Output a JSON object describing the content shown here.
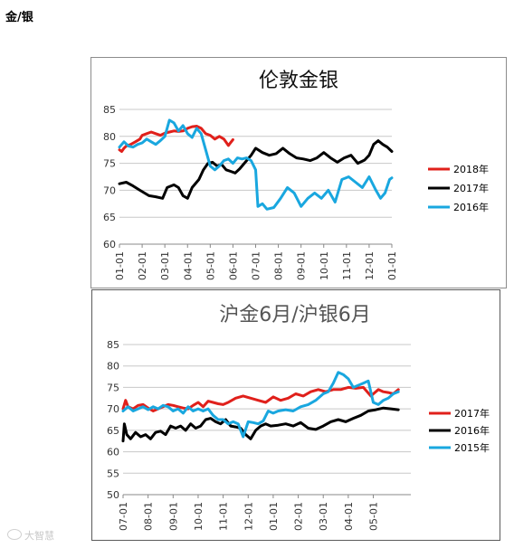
{
  "heading": "金/银",
  "watermark": "大智慧",
  "chart_data": [
    {
      "type": "line",
      "title": "伦敦金银",
      "xlabel": "",
      "ylabel": "",
      "ylim": [
        60,
        85
      ],
      "yticks": [
        "60",
        "65",
        "70",
        "75",
        "80",
        "85"
      ],
      "categories": [
        "01-01",
        "02-01",
        "03-01",
        "04-01",
        "05-01",
        "06-01",
        "07-01",
        "08-01",
        "09-01",
        "10-01",
        "11-01",
        "12-01",
        "01-01"
      ],
      "legend_position": "right",
      "grid": true,
      "series": [
        {
          "name": "2018年",
          "color": "#e0201b",
          "x": [
            0,
            0.1,
            0.2,
            0.3,
            0.5,
            0.7,
            0.9,
            1.0,
            1.2,
            1.4,
            1.6,
            1.8,
            2.0,
            2.2,
            2.4,
            2.6,
            2.8,
            3.0,
            3.2,
            3.4,
            3.6,
            3.8,
            4.0,
            4.2,
            4.4,
            4.6,
            4.8,
            5.0
          ],
          "y": [
            77.5,
            77.2,
            77.8,
            78.2,
            78.5,
            79.0,
            79.5,
            80.2,
            80.5,
            80.8,
            80.5,
            80.2,
            80.6,
            80.8,
            81.0,
            80.9,
            81.0,
            81.5,
            81.8,
            81.9,
            81.5,
            80.5,
            80.2,
            79.5,
            80.0,
            79.5,
            78.3,
            79.4
          ]
        },
        {
          "name": "2017年",
          "color": "#000000",
          "x": [
            0,
            0.3,
            0.6,
            0.9,
            1.1,
            1.3,
            1.6,
            1.9,
            2.1,
            2.4,
            2.6,
            2.8,
            3.0,
            3.2,
            3.5,
            3.7,
            3.9,
            4.1,
            4.3,
            4.5,
            4.7,
            4.9,
            5.1,
            5.3,
            5.6,
            5.8,
            6.0,
            6.3,
            6.6,
            6.9,
            7.2,
            7.5,
            7.8,
            8.1,
            8.4,
            8.7,
            9.0,
            9.3,
            9.6,
            9.9,
            10.2,
            10.5,
            10.8,
            11.0,
            11.2,
            11.4,
            11.6,
            11.8,
            12.0
          ],
          "y": [
            71.2,
            71.5,
            70.8,
            70.0,
            69.5,
            69.0,
            68.8,
            68.5,
            70.5,
            71.0,
            70.5,
            69.0,
            68.5,
            70.5,
            72.0,
            73.8,
            75.0,
            75.2,
            74.5,
            74.8,
            73.8,
            73.5,
            73.2,
            74.0,
            75.5,
            76.5,
            77.8,
            77.0,
            76.5,
            76.8,
            77.8,
            76.8,
            76.0,
            75.8,
            75.5,
            76.0,
            77.0,
            76.0,
            75.2,
            76.0,
            76.5,
            75.0,
            75.6,
            76.5,
            78.5,
            79.2,
            78.5,
            78.0,
            77.2
          ]
        },
        {
          "name": "2016年",
          "color": "#19a7df",
          "x": [
            0,
            0.2,
            0.4,
            0.6,
            0.8,
            1.0,
            1.2,
            1.4,
            1.6,
            1.8,
            2.0,
            2.2,
            2.4,
            2.6,
            2.8,
            3.0,
            3.2,
            3.4,
            3.6,
            3.8,
            4.0,
            4.2,
            4.4,
            4.6,
            4.8,
            5.0,
            5.2,
            5.4,
            5.6,
            5.8,
            6.0,
            6.1,
            6.3,
            6.5,
            6.8,
            7.1,
            7.4,
            7.7,
            8.0,
            8.3,
            8.6,
            8.9,
            9.2,
            9.5,
            9.8,
            10.1,
            10.4,
            10.7,
            11.0,
            11.3,
            11.5,
            11.7,
            11.9,
            12.0
          ],
          "y": [
            78.0,
            79.0,
            78.2,
            78.0,
            78.5,
            78.8,
            79.5,
            79.0,
            78.5,
            79.2,
            80.0,
            83.0,
            82.5,
            81.0,
            82.0,
            80.5,
            79.8,
            81.5,
            80.5,
            77.5,
            74.5,
            73.8,
            74.5,
            75.5,
            75.8,
            75.0,
            76.0,
            75.8,
            76.0,
            75.5,
            73.8,
            67.0,
            67.5,
            66.5,
            66.8,
            68.5,
            70.5,
            69.5,
            67.0,
            68.5,
            69.5,
            68.5,
            70.0,
            67.8,
            72.0,
            72.5,
            71.5,
            70.5,
            72.5,
            70.0,
            68.5,
            69.5,
            72.0,
            72.3
          ]
        }
      ]
    },
    {
      "type": "line",
      "title": "沪金6月/沪银6月",
      "xlabel": "",
      "ylabel": "",
      "ylim": [
        50,
        85
      ],
      "yticks": [
        "50",
        "55",
        "60",
        "65",
        "70",
        "75",
        "80",
        "85"
      ],
      "categories": [
        "07-01",
        "08-01",
        "09-01",
        "10-01",
        "11-01",
        "12-01",
        "01-01",
        "02-01",
        "03-01",
        "04-01",
        "05-01"
      ],
      "legend_position": "right",
      "grid": true,
      "series": [
        {
          "name": "2017年",
          "color": "#e0201b",
          "x": [
            0,
            0.1,
            0.2,
            0.4,
            0.6,
            0.8,
            1.0,
            1.2,
            1.4,
            1.6,
            1.8,
            2.0,
            2.2,
            2.4,
            2.6,
            2.8,
            3.0,
            3.2,
            3.4,
            3.6,
            3.8,
            4.0,
            4.2,
            4.5,
            4.8,
            5.1,
            5.4,
            5.7,
            6.0,
            6.3,
            6.6,
            6.9,
            7.2,
            7.5,
            7.8,
            8.1,
            8.4,
            8.7,
            9.0,
            9.3,
            9.6,
            9.9,
            10.2,
            10.4,
            10.6,
            10.8,
            11.0
          ],
          "y": [
            70.0,
            72.0,
            70.5,
            70.0,
            70.8,
            71.0,
            70.2,
            69.5,
            70.0,
            70.5,
            71.0,
            70.8,
            70.5,
            70.2,
            70.0,
            70.8,
            71.5,
            70.5,
            71.8,
            71.5,
            71.2,
            71.0,
            71.5,
            72.5,
            73.0,
            72.5,
            72.0,
            71.5,
            72.8,
            72.0,
            72.5,
            73.5,
            73.0,
            74.0,
            74.5,
            74.0,
            74.5,
            74.5,
            75.0,
            74.8,
            75.0,
            73.0,
            74.5,
            74.0,
            73.8,
            73.5,
            74.5
          ]
        },
        {
          "name": "2016年",
          "color": "#000000",
          "x": [
            0,
            0.05,
            0.15,
            0.3,
            0.5,
            0.7,
            0.9,
            1.1,
            1.3,
            1.5,
            1.7,
            1.9,
            2.1,
            2.3,
            2.5,
            2.7,
            2.9,
            3.1,
            3.3,
            3.5,
            3.7,
            3.9,
            4.1,
            4.3,
            4.5,
            4.7,
            4.9,
            5.1,
            5.3,
            5.5,
            5.7,
            5.9,
            6.2,
            6.5,
            6.8,
            7.1,
            7.4,
            7.7,
            8.0,
            8.3,
            8.6,
            8.9,
            9.2,
            9.5,
            9.8,
            10.1,
            10.4,
            10.7,
            11.0
          ],
          "y": [
            62.5,
            66.5,
            64.0,
            63.0,
            64.5,
            63.5,
            64.0,
            63.0,
            64.5,
            64.8,
            64.0,
            66.0,
            65.5,
            66.0,
            65.0,
            66.5,
            65.5,
            66.0,
            67.5,
            67.8,
            67.0,
            66.5,
            67.5,
            66.0,
            65.8,
            65.5,
            64.0,
            63.0,
            65.0,
            66.0,
            66.5,
            66.0,
            66.2,
            66.5,
            66.0,
            66.8,
            65.5,
            65.2,
            66.0,
            67.0,
            67.5,
            67.0,
            67.8,
            68.5,
            69.5,
            69.8,
            70.2,
            70.0,
            69.8
          ]
        },
        {
          "name": "2015年",
          "color": "#19a7df",
          "x": [
            0,
            0.2,
            0.4,
            0.6,
            0.8,
            1.0,
            1.2,
            1.4,
            1.6,
            1.8,
            2.0,
            2.2,
            2.4,
            2.6,
            2.8,
            3.0,
            3.2,
            3.4,
            3.6,
            3.8,
            4.0,
            4.2,
            4.4,
            4.6,
            4.8,
            5.0,
            5.2,
            5.4,
            5.6,
            5.8,
            6.0,
            6.2,
            6.5,
            6.8,
            7.1,
            7.4,
            7.7,
            8.0,
            8.2,
            8.4,
            8.6,
            8.8,
            9.0,
            9.2,
            9.4,
            9.6,
            9.8,
            10.0,
            10.2,
            10.4,
            10.6,
            10.8,
            11.0
          ],
          "y": [
            69.5,
            70.5,
            69.5,
            70.0,
            70.5,
            69.8,
            70.5,
            70.0,
            70.8,
            70.5,
            69.5,
            70.0,
            69.0,
            70.5,
            69.5,
            70.0,
            69.5,
            70.0,
            68.5,
            67.5,
            67.5,
            66.5,
            67.0,
            66.5,
            63.5,
            67.0,
            66.8,
            66.5,
            67.2,
            69.5,
            69.0,
            69.5,
            69.8,
            69.5,
            70.5,
            71.0,
            72.0,
            73.5,
            74.0,
            76.0,
            78.5,
            78.0,
            77.0,
            75.0,
            75.5,
            76.0,
            76.5,
            71.5,
            71.0,
            72.0,
            72.5,
            73.5,
            74.0
          ]
        }
      ]
    }
  ]
}
